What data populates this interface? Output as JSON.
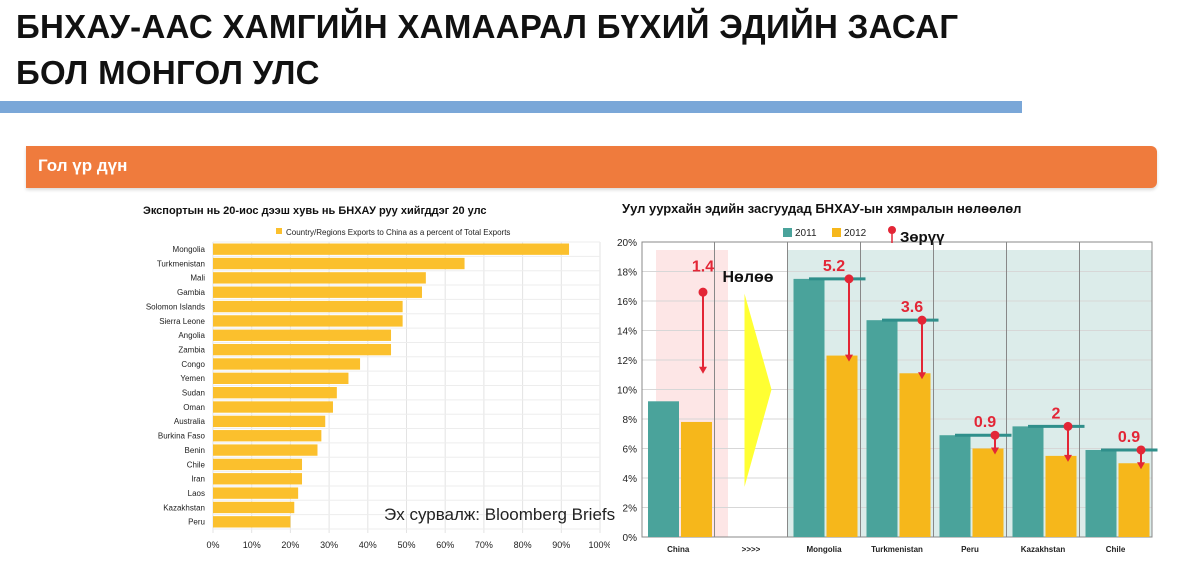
{
  "title": {
    "line1": "БНХАУ-ААС ХАМГИЙН ХАМААРАЛ БҮХИЙ ЭДИЙН ЗАСАГ",
    "line2": "БОЛ МОНГОЛ УЛС"
  },
  "banner": {
    "label": "Гол үр дүн"
  },
  "colors": {
    "accent_orange": "#ef7b3d",
    "rule_blue": "#7aa7d8",
    "bar_gold": "#fbc02d",
    "teal": "#4aa39b",
    "gold2012": "#f6b71b",
    "arrow_red": "#e32636",
    "arrow_yellow": "#ffff33"
  },
  "source": "Эх сурвалж: Bloomberg Briefs",
  "chart_data": [
    {
      "type": "bar",
      "orientation": "horizontal",
      "title": "Экспортын нь 20-иос дээш хувь нь БНХАУ руу хийгддэг 20 улс",
      "legend": "Country/Regions Exports to China as a percent of Total Exports",
      "legend_position": "top",
      "categories": [
        "Mongolia",
        "Turkmenistan",
        "Mali",
        "Gambia",
        "Solomon Islands",
        "Sierra Leone",
        "Angolia",
        "Zambia",
        "Congo",
        "Yemen",
        "Sudan",
        "Oman",
        "Australia",
        "Burkina Faso",
        "Benin",
        "Chile",
        "Iran",
        "Laos",
        "Kazakhstan",
        "Peru"
      ],
      "values": [
        92,
        65,
        55,
        54,
        49,
        49,
        46,
        46,
        38,
        35,
        32,
        31,
        29,
        28,
        27,
        23,
        23,
        22,
        21,
        20
      ],
      "xlim": [
        0,
        100
      ],
      "x_ticks": [
        "0%",
        "10%",
        "20%",
        "30%",
        "40%",
        "50%",
        "60%",
        "70%",
        "80%",
        "90%",
        "100%"
      ],
      "grid": true
    },
    {
      "type": "bar",
      "title": "Уул уурхайн эдийн засгуудад БНХАУ-ын хямралын нөлөөлөл",
      "categories": [
        "China",
        ">>>>",
        "Mongolia",
        "Turkmenistan",
        "Peru",
        "Kazakhstan",
        "Chile"
      ],
      "series": [
        {
          "name": "2011",
          "color": "#4aa39b",
          "values": [
            9.2,
            null,
            17.5,
            14.7,
            6.9,
            7.5,
            5.9
          ]
        },
        {
          "name": "2012",
          "color": "#f6b71b",
          "values": [
            7.8,
            null,
            12.3,
            11.1,
            6.0,
            5.5,
            5.0
          ]
        }
      ],
      "ylim": [
        0,
        20
      ],
      "y_ticks": [
        "0%",
        "2%",
        "4%",
        "6%",
        "8%",
        "10%",
        "12%",
        "14%",
        "16%",
        "18%",
        "20%"
      ],
      "legend_position": "top",
      "annotations": {
        "impact_label": "Нөлөө",
        "drop_label": "Зөрүү",
        "drops": [
          {
            "category": "China",
            "value": "1.4"
          },
          {
            "category": "Mongolia",
            "value": "5.2"
          },
          {
            "category": "Turkmenistan",
            "value": "3.6"
          },
          {
            "category": "Peru",
            "value": "0.9"
          },
          {
            "category": "Kazakhstan",
            "value": "2"
          },
          {
            "category": "Chile",
            "value": "0.9"
          }
        ]
      }
    }
  ]
}
